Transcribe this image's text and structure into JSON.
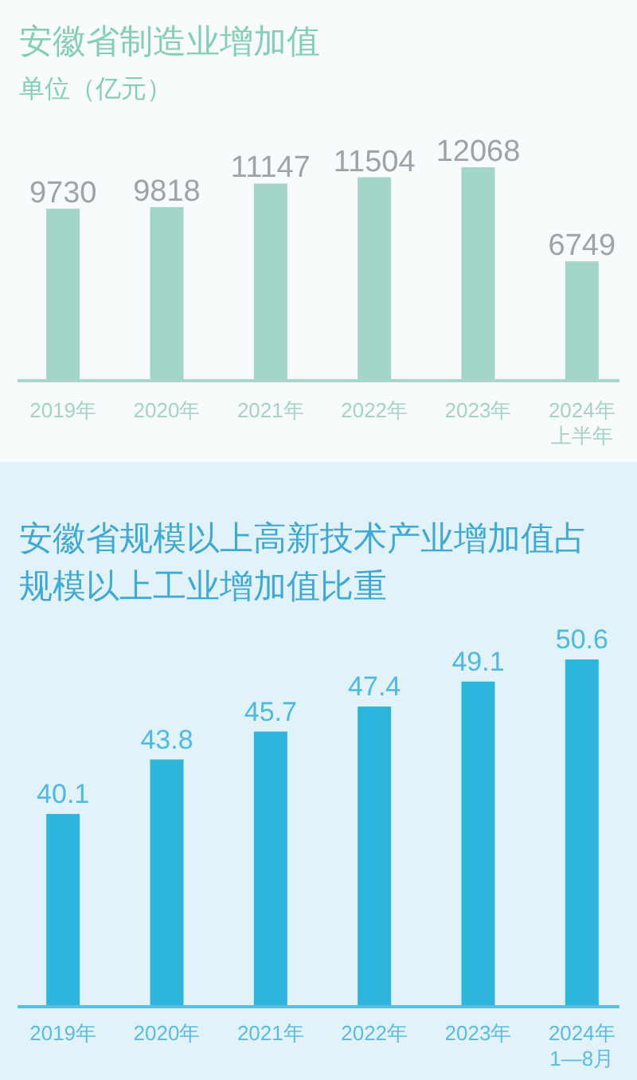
{
  "chart_data": [
    {
      "type": "bar",
      "title": "安徽省制造业增加值",
      "subtitle": "单位（亿元）",
      "categories": [
        "2019年",
        "2020年",
        "2021年",
        "2022年",
        "2023年",
        "2024年上半年"
      ],
      "values": [
        9730,
        9818,
        11147,
        11504,
        12068,
        6749
      ],
      "color": "#a3d6c8",
      "data_labels": true,
      "tick_labels": "x"
    },
    {
      "type": "bar",
      "title": "安徽省规模以上高新技术产业增加值占规模以上工业增加值比重",
      "categories": [
        "2019年",
        "2020年",
        "2021年",
        "2022年",
        "2023年",
        "2024年1—8月"
      ],
      "values": [
        40.1,
        43.8,
        45.7,
        47.4,
        49.1,
        50.6
      ],
      "color": "#2db5dc",
      "ylim": [
        27,
        50.6
      ],
      "data_labels": true,
      "tick_labels": "x"
    }
  ]
}
